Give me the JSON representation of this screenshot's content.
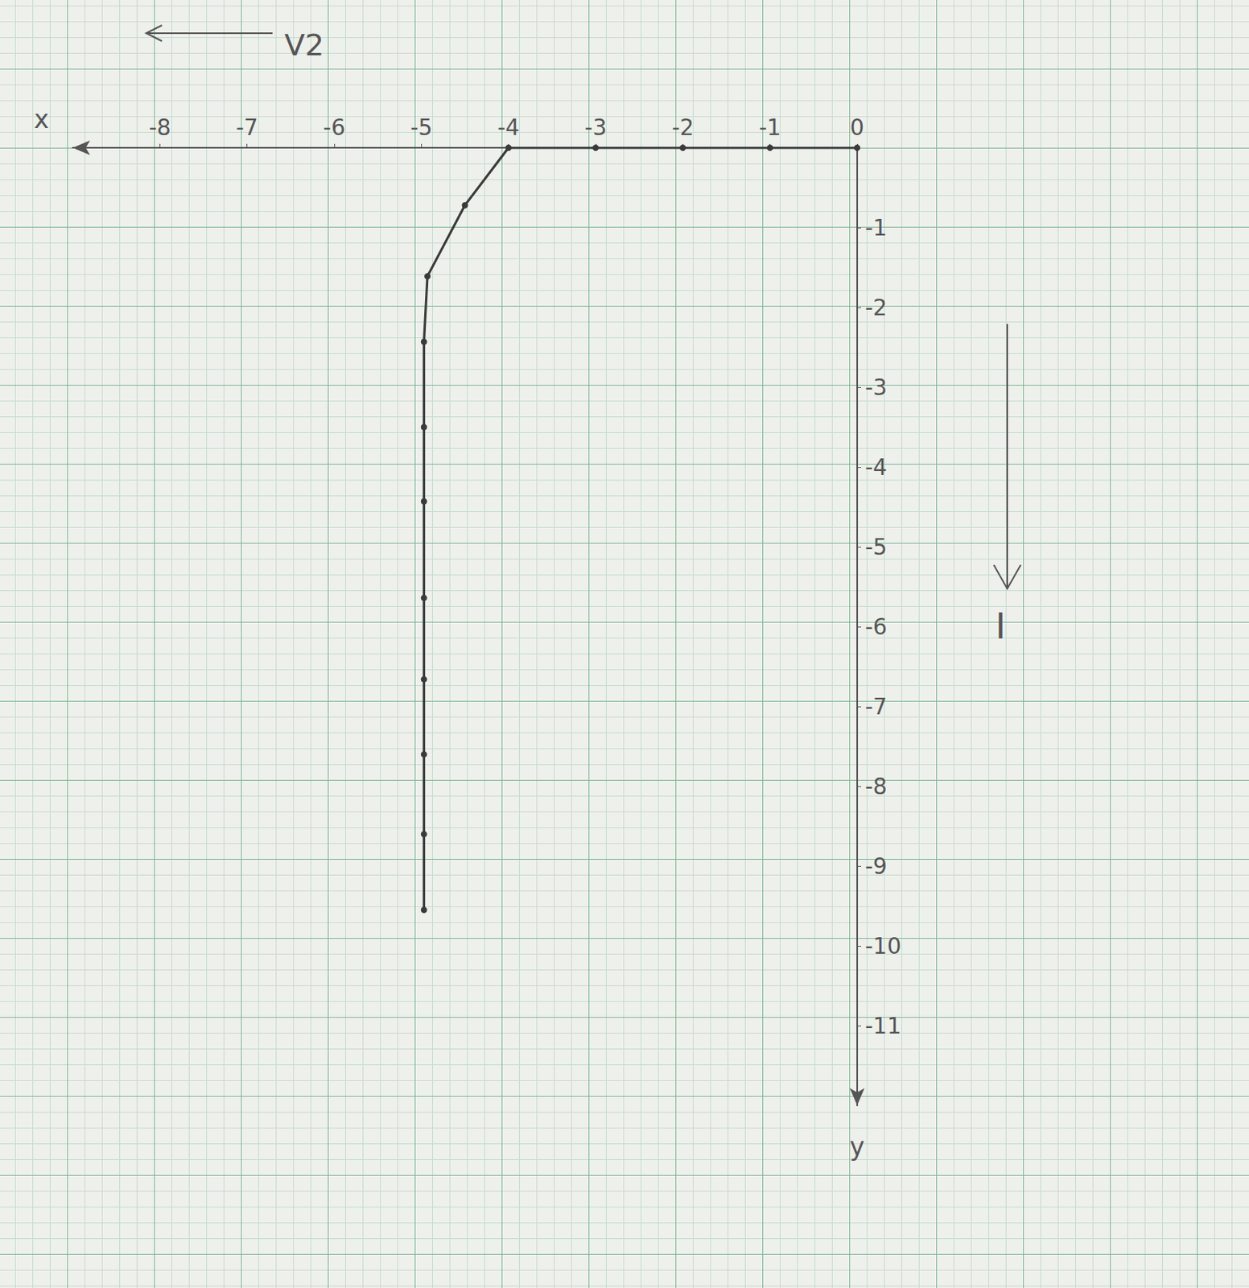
{
  "chart_data": {
    "type": "line",
    "xlabel": "x",
    "ylabel": "y",
    "annotations": [
      "V2",
      "I"
    ],
    "x": [
      0,
      -1,
      -2,
      -3,
      -4,
      -4.5,
      -4.93,
      -4.97,
      -4.97,
      -4.97,
      -4.97,
      -4.97,
      -4.97,
      -4.97,
      -4.97
    ],
    "values": [
      0,
      0,
      0,
      0,
      0,
      -0.72,
      -1.61,
      -2.43,
      -3.5,
      -4.43,
      -5.64,
      -6.66,
      -7.6,
      -8.6,
      -9.55
    ],
    "xlim": [
      -9,
      0
    ],
    "xticks": [
      -8,
      -7,
      -6,
      -5,
      -4,
      -3,
      -2,
      -1,
      0
    ],
    "ylim": [
      -12,
      0
    ],
    "yticks": [
      -11,
      -10,
      -9,
      -8,
      -7,
      -6,
      -5,
      -4,
      -3,
      -2,
      -1
    ],
    "color": "#3a3a3a",
    "marker": "circle",
    "grid": true
  }
}
